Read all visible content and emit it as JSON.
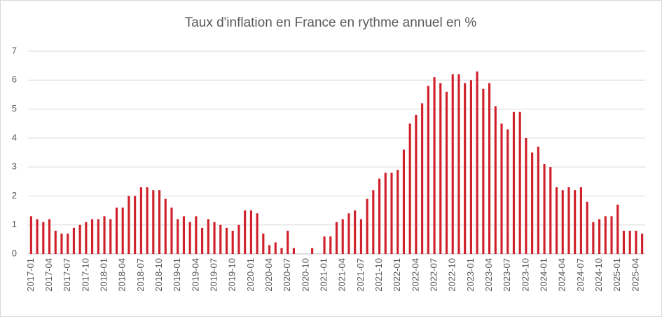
{
  "chart_data": {
    "type": "bar",
    "title": "Taux d'inflation en France en rythme annuel en %",
    "categories": [
      "2017-01",
      null,
      null,
      "2017-04",
      null,
      null,
      "2017-07",
      null,
      null,
      "2017-10",
      null,
      null,
      "2018-01",
      null,
      null,
      "2018-04",
      null,
      null,
      "2018-07",
      null,
      null,
      "2018-10",
      null,
      null,
      "2019-01",
      null,
      null,
      "2019-04",
      null,
      null,
      "2019-07",
      null,
      null,
      "2019-10",
      null,
      null,
      "2020-01",
      null,
      null,
      "2020-04",
      null,
      null,
      "2020-07",
      null,
      null,
      "2020-10",
      null,
      null,
      "2021-01",
      null,
      null,
      "2021-04",
      null,
      null,
      "2021-07",
      null,
      null,
      "2021-10",
      null,
      null,
      "2022-01",
      null,
      null,
      "2022-04",
      null,
      null,
      "2022-07",
      null,
      null,
      "2022-10",
      null,
      null,
      "2023-01",
      null,
      null,
      "2023-04",
      null,
      null,
      "2023-07",
      null,
      null,
      "2023-10",
      null,
      null,
      "2024-01",
      null,
      null,
      "2024-04",
      null,
      null,
      "2024-07",
      null,
      null,
      "2024-10",
      null,
      null,
      "2025-01",
      null,
      null,
      "2025-04",
      null
    ],
    "values": [
      1.3,
      1.2,
      1.1,
      1.2,
      0.8,
      0.7,
      0.7,
      0.9,
      1.0,
      1.1,
      1.2,
      1.2,
      1.3,
      1.2,
      1.6,
      1.6,
      2.0,
      2.0,
      2.3,
      2.3,
      2.2,
      2.2,
      1.9,
      1.6,
      1.2,
      1.3,
      1.1,
      1.3,
      0.9,
      1.2,
      1.1,
      1.0,
      0.9,
      0.8,
      1.0,
      1.5,
      1.5,
      1.4,
      0.7,
      0.3,
      0.4,
      0.2,
      0.8,
      0.2,
      0.0,
      0.0,
      0.2,
      0.0,
      0.6,
      0.6,
      1.1,
      1.2,
      1.4,
      1.5,
      1.2,
      1.9,
      2.2,
      2.6,
      2.8,
      2.8,
      2.9,
      3.6,
      4.5,
      4.8,
      5.2,
      5.8,
      6.1,
      5.9,
      5.6,
      6.2,
      6.2,
      5.9,
      6.0,
      6.3,
      5.7,
      5.9,
      5.1,
      4.5,
      4.3,
      4.9,
      4.9,
      4.0,
      3.5,
      3.7,
      3.1,
      3.0,
      2.3,
      2.2,
      2.3,
      2.2,
      2.3,
      1.8,
      1.1,
      1.2,
      1.3,
      1.3,
      1.7,
      0.8,
      0.8,
      0.8,
      0.7
    ],
    "color": "#d0202a",
    "ylim": [
      0,
      7
    ],
    "yticks": [
      0,
      1,
      2,
      3,
      4,
      5,
      6,
      7
    ],
    "grid": true
  }
}
